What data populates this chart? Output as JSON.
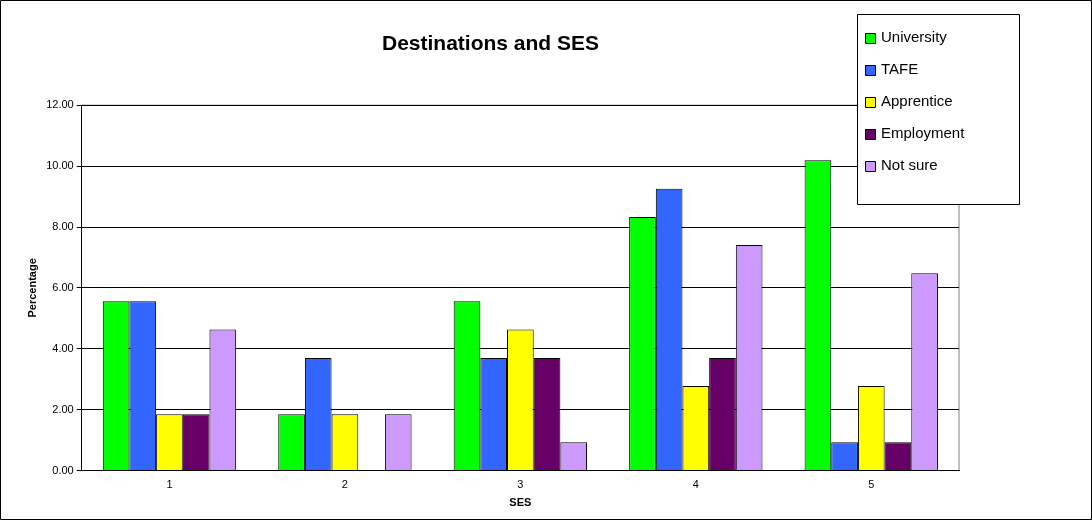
{
  "chart_data": {
    "type": "bar",
    "title": "Destinations and SES",
    "xlabel": "SES",
    "ylabel": "Percentage",
    "categories": [
      "1",
      "2",
      "3",
      "4",
      "5"
    ],
    "series": [
      {
        "name": "University",
        "color": "#00ff00",
        "values": [
          5.56,
          1.85,
          5.56,
          8.33,
          10.19
        ]
      },
      {
        "name": "TAFE",
        "color": "#3366ff",
        "values": [
          5.56,
          3.7,
          3.7,
          9.26,
          0.93
        ]
      },
      {
        "name": "Apprentice",
        "color": "#ffff00",
        "values": [
          1.85,
          1.85,
          4.63,
          2.78,
          2.78
        ]
      },
      {
        "name": "Employment",
        "color": "#660066",
        "values": [
          1.85,
          0,
          3.7,
          3.7,
          0.93
        ]
      },
      {
        "name": "Not sure",
        "color": "#cc99ff",
        "values": [
          4.63,
          1.85,
          0.93,
          7.41,
          6.48
        ]
      }
    ],
    "ylim": [
      0,
      12
    ],
    "yticks": [
      {
        "value": 0,
        "label": "0.00"
      },
      {
        "value": 2,
        "label": "2.00"
      },
      {
        "value": 4,
        "label": "4.00"
      },
      {
        "value": 6,
        "label": "6.00"
      },
      {
        "value": 8,
        "label": "8.00"
      },
      {
        "value": 10,
        "label": "10.00"
      },
      {
        "value": 12,
        "label": "12.00"
      }
    ],
    "grid": "y",
    "legend": "top right"
  }
}
